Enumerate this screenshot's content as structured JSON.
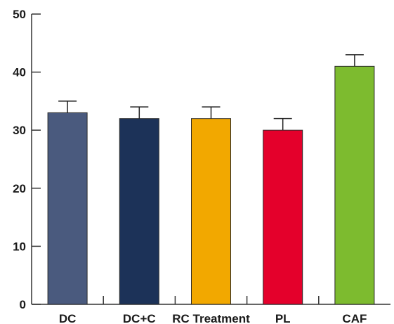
{
  "chart_data": {
    "type": "bar",
    "categories": [
      "DC",
      "DC+C",
      "RC Treatment",
      "PL",
      "CAF"
    ],
    "values": [
      33,
      32,
      32,
      30,
      41
    ],
    "error_upper": [
      35,
      34,
      34,
      32,
      43
    ],
    "colors": [
      "#4a5a7e",
      "#1c3258",
      "#f2a800",
      "#e4002b",
      "#7dbb2f"
    ],
    "ylim": [
      0,
      50
    ],
    "yticks": [
      0,
      10,
      20,
      30,
      40,
      50
    ],
    "title": "",
    "xlabel": "",
    "ylabel": "",
    "grid": false
  }
}
